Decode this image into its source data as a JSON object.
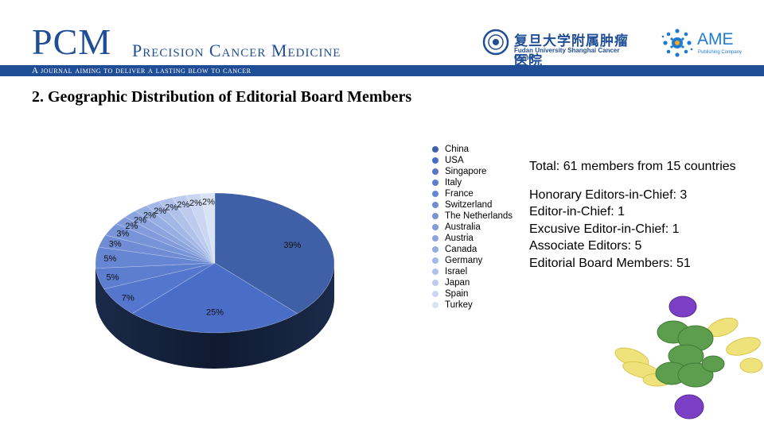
{
  "header": {
    "logo_main": "PCM",
    "logo_sub": "Precision Cancer Medicine",
    "tagline": "A journal aiming to deliver a lasting blow to cancer",
    "fudan_cn": "复旦大学附属肿瘤医院",
    "fudan_en": "Fudan University Shanghai Cancer Center",
    "ame_name": "AME",
    "ame_sub": "Publishing Company",
    "colors": {
      "brand_blue": "#1f4e96",
      "ame_blue": "#1f7bd0"
    }
  },
  "slide_title": "2. Geographic Distribution of Editorial Board Members",
  "chart_data": {
    "type": "pie",
    "title": "",
    "categories": [
      "China",
      "USA",
      "Singapore",
      "Italy",
      "France",
      "Switzerland",
      "The Netherlands",
      "Australia",
      "Austria",
      "Canada",
      "Germany",
      "Israel",
      "Japan",
      "Spain",
      "Turkey"
    ],
    "values": [
      39,
      25,
      7,
      5,
      5,
      3,
      3,
      2,
      2,
      2,
      2,
      2,
      2,
      2,
      2
    ],
    "data_labels": [
      "39%",
      "25%",
      "7%",
      "5%",
      "5%",
      "3%",
      "3%",
      "2%",
      "2%",
      "2%",
      "2%",
      "2%",
      "2%",
      "2%",
      "2%"
    ],
    "colors": [
      "#3f5fa6",
      "#4a6ec8",
      "#5476cc",
      "#5d7dcf",
      "#6685d2",
      "#6f8cd5",
      "#7894d8",
      "#829cdb",
      "#8ca5df",
      "#97aee2",
      "#a3b8e6",
      "#b0c2ea",
      "#bdccee",
      "#cbd7f2",
      "#dae3f6"
    ],
    "legend_placement": "right",
    "style": "3d"
  },
  "info": {
    "total_line": "Total: 61 members from 15 countries",
    "lines": [
      "Honorary Editors-in-Chief: 3",
      "Editor-in-Chief: 1",
      "Excusive Editor-in-Chief: 1",
      "Associate Editors: 5",
      "Editorial Board Members: 51"
    ]
  }
}
